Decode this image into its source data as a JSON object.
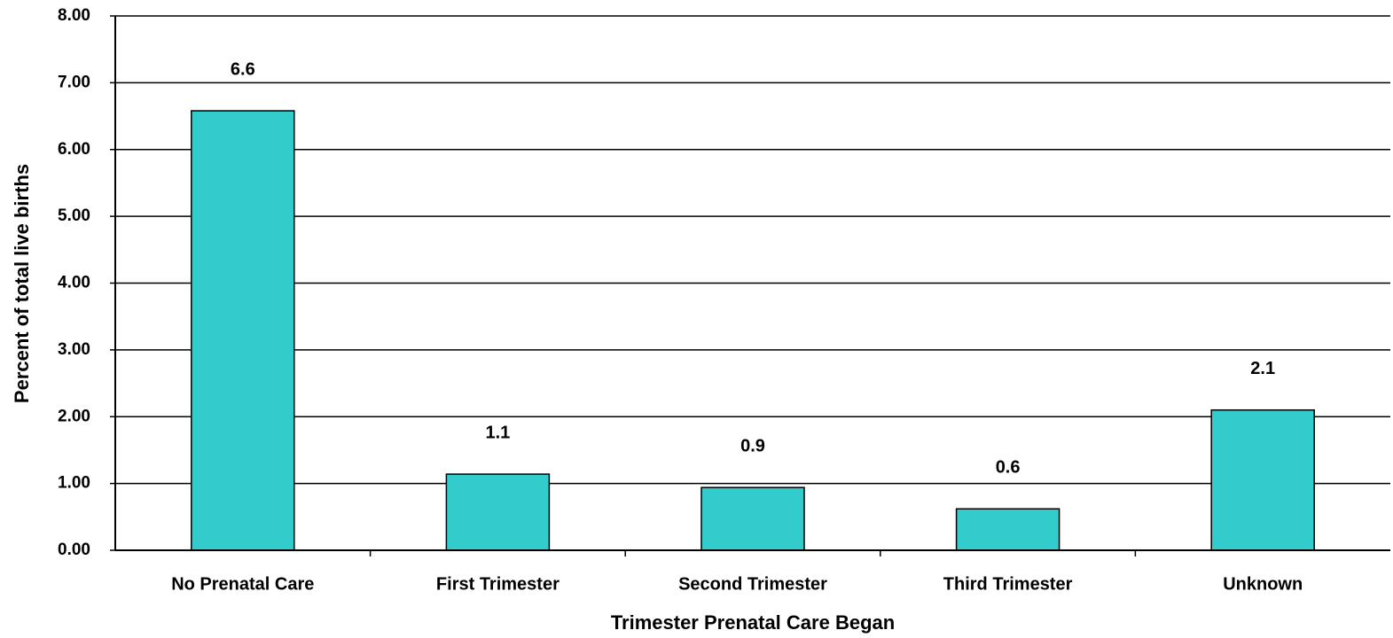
{
  "chart_data": {
    "type": "bar",
    "x_label": "Trimester Prenatal Care Began",
    "y_label": "Percent of total live births",
    "categories": [
      "No Prenatal Care",
      "First Trimester",
      "Second Trimester",
      "Third Trimester",
      "Unknown"
    ],
    "values": [
      6.58,
      1.14,
      0.94,
      0.62,
      2.1
    ],
    "value_labels": [
      "6.6",
      "1.1",
      "0.9",
      "0.6",
      "2.1"
    ],
    "color": "#33cccc",
    "ylim": [
      0,
      8
    ],
    "yticks": [
      {
        "value": 0,
        "label": "0.00"
      },
      {
        "value": 1,
        "label": "1.00"
      },
      {
        "value": 2,
        "label": "2.00"
      },
      {
        "value": 3,
        "label": "3.00"
      },
      {
        "value": 4,
        "label": "4.00"
      },
      {
        "value": 5,
        "label": "5.00"
      },
      {
        "value": 6,
        "label": "6.00"
      },
      {
        "value": 7,
        "label": "7.00"
      },
      {
        "value": 8,
        "label": "8.00"
      }
    ],
    "grid": true
  }
}
